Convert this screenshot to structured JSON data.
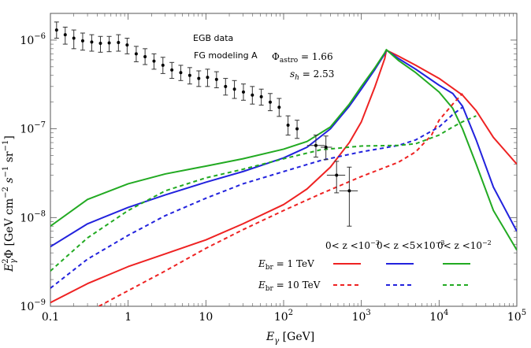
{
  "chart_data": {
    "type": "line",
    "xscale": "log",
    "yscale": "log",
    "xlim": [
      0.1,
      100000
    ],
    "ylim": [
      1e-09,
      2e-06
    ],
    "xlabel": "E_γ [GeV]",
    "ylabel": "E_γ^2 Φ [GeV cm^-2 s^-1 sr^-1]",
    "x_ticks": [
      {
        "v": 0.1,
        "label": "0.1"
      },
      {
        "v": 1,
        "label": "1"
      },
      {
        "v": 10,
        "label": "10"
      },
      {
        "v": 100,
        "label": "10",
        "sup": "2"
      },
      {
        "v": 1000,
        "label": "10",
        "sup": "3"
      },
      {
        "v": 10000,
        "label": "10",
        "sup": "4"
      },
      {
        "v": 100000,
        "label": "10",
        "sup": "5"
      }
    ],
    "y_ticks": [
      {
        "v": 1e-09,
        "label": "10",
        "sup": "−9"
      },
      {
        "v": 1e-08,
        "label": "10",
        "sup": "−8"
      },
      {
        "v": 1e-07,
        "label": "10",
        "sup": "−7"
      },
      {
        "v": 1e-06,
        "label": "10",
        "sup": "−6"
      }
    ],
    "annotations": {
      "egb": "EGB data",
      "fg": "FG modeling A",
      "phi": "Φ",
      "phi_sub": "astro",
      "phi_val": " = 1.66",
      "sh": "s",
      "sh_sub": "h",
      "sh_val": " = 2.53"
    },
    "legend": {
      "col_labels": [
        {
          "text": "0< z <10",
          "sup": "−3",
          "color": "#ee2222"
        },
        {
          "text": "0< z <5×10",
          "sup": "−3",
          "color": "#2222dd"
        },
        {
          "text": "0< z <10",
          "sup": "−2",
          "color": "#22aa22"
        }
      ],
      "rows": [
        {
          "prefix": "E",
          "sub": "br",
          "suffix": " = 1 TeV",
          "style": "solid"
        },
        {
          "prefix": "E",
          "sub": "br",
          "suffix": " = 10 TeV",
          "style": "dashed"
        }
      ]
    },
    "colors": {
      "red": "#ee2222",
      "blue": "#2222dd",
      "green": "#22aa22",
      "data": "#000000"
    },
    "egb_data": [
      {
        "x": 0.12,
        "y": 1.3e-06,
        "lo": 1.05e-06,
        "hi": 1.6e-06
      },
      {
        "x": 0.155,
        "y": 1.15e-06,
        "lo": 9e-07,
        "hi": 1.4e-06
      },
      {
        "x": 0.2,
        "y": 1.05e-06,
        "lo": 8e-07,
        "hi": 1.3e-06
      },
      {
        "x": 0.26,
        "y": 9.8e-07,
        "lo": 7.7e-07,
        "hi": 1.2e-06
      },
      {
        "x": 0.34,
        "y": 9.5e-07,
        "lo": 7.5e-07,
        "hi": 1.15e-06
      },
      {
        "x": 0.44,
        "y": 9.2e-07,
        "lo": 7.3e-07,
        "hi": 1.1e-06
      },
      {
        "x": 0.57,
        "y": 9.3e-07,
        "lo": 7.4e-07,
        "hi": 1.1e-06
      },
      {
        "x": 0.75,
        "y": 9.4e-07,
        "lo": 7.5e-07,
        "hi": 1.15e-06
      },
      {
        "x": 0.97,
        "y": 8.8e-07,
        "lo": 7e-07,
        "hi": 1.05e-06
      },
      {
        "x": 1.27,
        "y": 7e-07,
        "lo": 5.7e-07,
        "hi": 8.5e-07
      },
      {
        "x": 1.65,
        "y": 6.5e-07,
        "lo": 5.3e-07,
        "hi": 8e-07
      },
      {
        "x": 2.15,
        "y": 5.8e-07,
        "lo": 4.7e-07,
        "hi": 7e-07
      },
      {
        "x": 2.8,
        "y": 5.2e-07,
        "lo": 4.2e-07,
        "hi": 6.4e-07
      },
      {
        "x": 3.65,
        "y": 4.6e-07,
        "lo": 3.7e-07,
        "hi": 5.6e-07
      },
      {
        "x": 4.75,
        "y": 4.3e-07,
        "lo": 3.5e-07,
        "hi": 5.2e-07
      },
      {
        "x": 6.2,
        "y": 4e-07,
        "lo": 3.2e-07,
        "hi": 4.9e-07
      },
      {
        "x": 8.1,
        "y": 3.7e-07,
        "lo": 3e-07,
        "hi": 4.5e-07
      },
      {
        "x": 10.5,
        "y": 3.8e-07,
        "lo": 3e-07,
        "hi": 4.7e-07
      },
      {
        "x": 13.7,
        "y": 3.6e-07,
        "lo": 2.9e-07,
        "hi": 4.4e-07
      },
      {
        "x": 17.9,
        "y": 3e-07,
        "lo": 2.4e-07,
        "hi": 3.7e-07
      },
      {
        "x": 23.3,
        "y": 2.8e-07,
        "lo": 2.2e-07,
        "hi": 3.5e-07
      },
      {
        "x": 30.4,
        "y": 2.6e-07,
        "lo": 2.1e-07,
        "hi": 3.2e-07
      },
      {
        "x": 39.6,
        "y": 2.4e-07,
        "lo": 1.9e-07,
        "hi": 3e-07
      },
      {
        "x": 51.6,
        "y": 2.3e-07,
        "lo": 1.85e-07,
        "hi": 2.8e-07
      },
      {
        "x": 67.2,
        "y": 2e-07,
        "lo": 1.6e-07,
        "hi": 2.5e-07
      },
      {
        "x": 87.6,
        "y": 1.75e-07,
        "lo": 1.38e-07,
        "hi": 2.2e-07
      },
      {
        "x": 114,
        "y": 1.1e-07,
        "lo": 8.5e-08,
        "hi": 1.4e-07
      },
      {
        "x": 149,
        "y": 1e-07,
        "lo": 7.8e-08,
        "hi": 1.25e-07
      },
      {
        "x": 260,
        "y": 6.5e-08,
        "lo": 4.8e-08,
        "hi": 8.5e-08,
        "xlo": 200,
        "xhi": 340
      },
      {
        "x": 350,
        "y": 6.2e-08,
        "lo": 4.5e-08,
        "hi": 8.3e-08,
        "xlo": 300,
        "xhi": 420
      },
      {
        "x": 480,
        "y": 3e-08,
        "lo": 1.9e-08,
        "hi": 4.3e-08,
        "xlo": 360,
        "xhi": 620
      },
      {
        "x": 700,
        "y": 2e-08,
        "lo": 8e-09,
        "hi": 3.7e-08,
        "xlo": 520,
        "xhi": 900
      }
    ],
    "series": [
      {
        "name": "red solid (0<z<10^-3, E_br = 1 TeV)",
        "color": "#ee2222",
        "dashed": false,
        "x": [
          0.1,
          0.3,
          1,
          3,
          10,
          30,
          100,
          200,
          400,
          700,
          1000,
          1500,
          2000,
          2100,
          3000,
          5000,
          10000,
          20000,
          30000,
          50000,
          100000
        ],
        "y": [
          1.1e-09,
          1.8e-09,
          2.8e-09,
          3.9e-09,
          5.6e-09,
          8.5e-09,
          1.4e-08,
          2.1e-08,
          3.7e-08,
          7e-08,
          1.2e-07,
          3e-07,
          6.2e-07,
          7.7e-07,
          6.6e-07,
          5.2e-07,
          3.7e-07,
          2.4e-07,
          1.6e-07,
          8e-08,
          4e-08
        ]
      },
      {
        "name": "blue solid (0<z<5x10^-3, E_br = 1 TeV)",
        "color": "#2222dd",
        "dashed": false,
        "x": [
          0.1,
          0.3,
          1,
          3,
          10,
          30,
          100,
          200,
          400,
          700,
          1000,
          1500,
          2000,
          2100,
          3000,
          5000,
          10000,
          15000,
          20000,
          30000,
          50000,
          100000
        ],
        "y": [
          4.7e-09,
          8.5e-09,
          1.3e-08,
          1.8e-08,
          2.5e-08,
          3.3e-08,
          4.7e-08,
          6.2e-08,
          1e-07,
          1.8e-07,
          2.8e-07,
          4.7e-07,
          7e-07,
          7.7e-07,
          6.2e-07,
          4.7e-07,
          3.1e-07,
          2.5e-07,
          1.8e-07,
          7.5e-08,
          2.2e-08,
          7e-09
        ]
      },
      {
        "name": "green solid (0<z<10^-2, E_br = 1 TeV)",
        "color": "#22aa22",
        "dashed": false,
        "x": [
          0.1,
          0.3,
          1,
          3,
          10,
          30,
          100,
          200,
          400,
          700,
          1000,
          1500,
          2000,
          2100,
          3000,
          5000,
          10000,
          15000,
          20000,
          30000,
          50000,
          100000
        ],
        "y": [
          8e-09,
          1.6e-08,
          2.4e-08,
          3.1e-08,
          3.8e-08,
          4.6e-08,
          5.9e-08,
          7.2e-08,
          1.05e-07,
          1.9e-07,
          3e-07,
          4.9e-07,
          7.2e-07,
          7.8e-07,
          5.9e-07,
          4.3e-07,
          2.6e-07,
          1.7e-07,
          1e-07,
          4e-08,
          1.2e-08,
          4.3e-09
        ]
      },
      {
        "name": "red dashed (0<z<10^-3, E_br = 10 TeV)",
        "color": "#ee2222",
        "dashed": true,
        "x": [
          0.42,
          1,
          3,
          10,
          30,
          100,
          300,
          1000,
          3000,
          5000,
          8000,
          10000,
          15000,
          20000
        ],
        "y": [
          1e-09,
          1.5e-09,
          2.5e-09,
          4.5e-09,
          7.3e-09,
          1.2e-08,
          1.85e-08,
          2.9e-08,
          4.2e-08,
          5.5e-08,
          8.5e-08,
          1.25e-07,
          1.9e-07,
          2.5e-07
        ]
      },
      {
        "name": "blue dashed (0<z<5x10^-3, E_br = 10 TeV)",
        "color": "#2222dd",
        "dashed": true,
        "x": [
          0.1,
          0.3,
          1,
          3,
          10,
          30,
          100,
          300,
          1000,
          3000,
          5000,
          10000,
          15000,
          20000
        ],
        "y": [
          1.6e-09,
          3.4e-09,
          6.3e-09,
          1.05e-08,
          1.65e-08,
          2.4e-08,
          3.3e-08,
          4.4e-08,
          5.5e-08,
          6.5e-08,
          7.5e-08,
          1.05e-07,
          1.45e-07,
          1.75e-07
        ]
      },
      {
        "name": "green dashed (0<z<10^-2, E_br = 10 TeV)",
        "color": "#22aa22",
        "dashed": true,
        "x": [
          0.1,
          0.3,
          1,
          3,
          10,
          30,
          100,
          300,
          1000,
          3000,
          5000,
          10000,
          15000,
          20000,
          30000
        ],
        "y": [
          2.5e-09,
          5.9e-09,
          1.2e-08,
          2e-08,
          2.8e-08,
          3.5e-08,
          4.6e-08,
          5.8e-08,
          6.4e-08,
          6.5e-08,
          6.8e-08,
          8.5e-08,
          1.05e-07,
          1.2e-07,
          1.4e-07
        ]
      }
    ]
  }
}
